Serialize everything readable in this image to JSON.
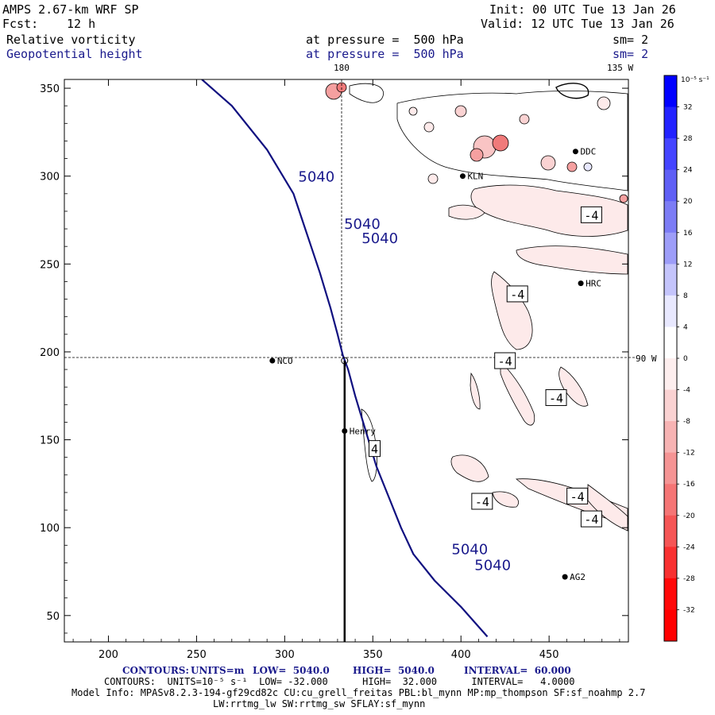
{
  "header": {
    "model": "AMPS 2.67-km WRF SP",
    "forecast_label": "Fcst:",
    "forecast_value": "12 h",
    "init": "Init: 00 UTC Tue 13 Jan 26",
    "valid": "Valid: 12 UTC Tue 13 Jan 26",
    "field1_name": "Relative vorticity",
    "field1_pressure": "at pressure =  500 hPa",
    "field1_sm": "sm= 2",
    "field2_name": "Geopotential height",
    "field2_pressure": "at pressure =  500 hPa",
    "field2_sm": "sm= 2"
  },
  "map_labels": {
    "lon_180": "180",
    "lon_135w": "135 W",
    "lon_90w": "90 W"
  },
  "stations": [
    {
      "name": "NCO",
      "x": 293,
      "y": 195
    },
    {
      "name": "Henry",
      "x": 334,
      "y": 155
    },
    {
      "name": "KLN",
      "x": 401,
      "y": 300
    },
    {
      "name": "DDC",
      "x": 465,
      "y": 314
    },
    {
      "name": "HRC",
      "x": 468,
      "y": 239
    },
    {
      "name": "AG2",
      "x": 459,
      "y": 72
    }
  ],
  "contour_labels": {
    "height": "5040",
    "vorticity": "-4"
  },
  "colorbar": {
    "units": "10⁻⁵ s⁻¹",
    "ticks": [
      "32",
      "28",
      "24",
      "20",
      "16",
      "12",
      "8",
      "4",
      "0",
      "-4",
      "-8",
      "-12",
      "-16",
      "-20",
      "-24",
      "-28",
      "-32"
    ],
    "colors": [
      "#0000ff",
      "#2222ff",
      "#4444ff",
      "#5f5ff5",
      "#7c7cf5",
      "#9d9df8",
      "#c4c4fb",
      "#e8e8fe",
      "#ffffff",
      "#fdeeee",
      "#fad2d2",
      "#f7b3b3",
      "#f59494",
      "#f57575",
      "#f55555",
      "#f83030",
      "#ff0808",
      "#ff0000"
    ]
  },
  "footer": {
    "line1_contours": "CONTOURS:",
    "line1_units": "UNITS=m",
    "line1_low": "LOW=  5040.0",
    "line1_high": "HIGH=  5040.0",
    "line1_interval": "INTERVAL=  60.000",
    "line2": "CONTOURS:  UNITS=10⁻⁵ s⁻¹  LOW= -32.000      HIGH=  32.000      INTERVAL=   4.0000",
    "line3": "Model Info: MPASv8.2.3-194-gf29cd82c CU:cu_grell_freitas PBL:bl_mynn MP:mp_thompson SF:sf_noahmp 2.7",
    "line4": "LW:rrtmg_lw SW:rrtmg_sw SFLAY:sf_mynn"
  },
  "chart_data": {
    "type": "contour-map",
    "title": "Relative vorticity and Geopotential height at 500 hPa",
    "xlim": [
      175,
      495
    ],
    "ylim": [
      35,
      355
    ],
    "xticks": [
      200,
      250,
      300,
      350,
      400,
      450
    ],
    "yticks": [
      50,
      100,
      150,
      200,
      250,
      300,
      350
    ],
    "height_contour_5040": [
      [
        253,
        355
      ],
      [
        270,
        340
      ],
      [
        290,
        315
      ],
      [
        305,
        290
      ],
      [
        315,
        260
      ],
      [
        320,
        245
      ],
      [
        326,
        225
      ],
      [
        330,
        210
      ],
      [
        333,
        198
      ],
      [
        336,
        190
      ],
      [
        340,
        175
      ],
      [
        346,
        155
      ],
      [
        352,
        135
      ],
      [
        360,
        115
      ],
      [
        366,
        100
      ],
      [
        373,
        85
      ],
      [
        385,
        70
      ],
      [
        400,
        55
      ],
      [
        415,
        38
      ]
    ],
    "cross_section": {
      "x": 334,
      "y_from": 35,
      "y_to": 195
    },
    "colorbar_range": [
      -32,
      32
    ],
    "colorbar_interval": 4
  }
}
